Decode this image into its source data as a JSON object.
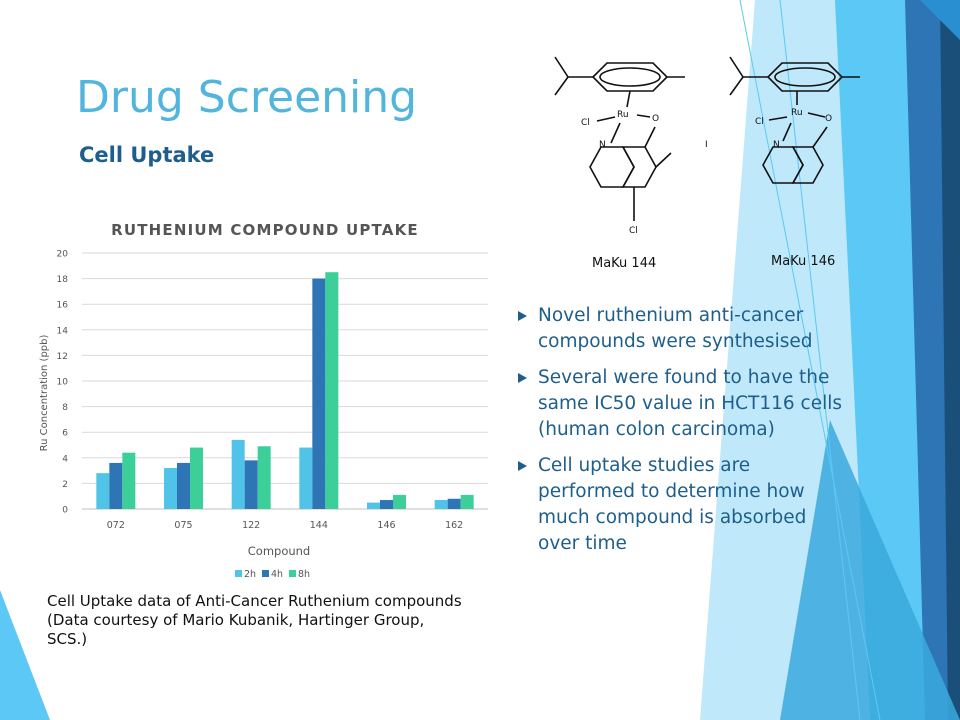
{
  "slide": {
    "title": "Drug Screening",
    "subtitle": "Cell Uptake",
    "caption_lines": [
      "Cell Uptake data of Anti-Cancer Ruthenium compounds",
      "(Data courtesy of Mario Kubanik, Hartinger Group,",
      "SCS.)"
    ],
    "bullets": [
      {
        "lines": [
          "Novel ruthenium anti-cancer",
          "compounds were synthesised"
        ]
      },
      {
        "lines": [
          "Several were found to have the",
          "same IC50 value in HCT116 cells",
          "(human colon carcinoma)"
        ]
      },
      {
        "lines": [
          "Cell uptake studies are",
          "performed to determine how",
          "much compound is absorbed",
          "over time"
        ]
      }
    ],
    "structures": [
      {
        "name": "MaKu 144",
        "atoms": {
          "metal": "Ru",
          "chloride": "Cl",
          "nitrogen": "N",
          "oxygen": "O",
          "iodine": "I",
          "ring_chloride": "Cl"
        }
      },
      {
        "name": "MaKu 146",
        "atoms": {
          "metal": "Ru",
          "chloride": "Cl",
          "nitrogen": "N",
          "oxygen": "O"
        }
      }
    ],
    "colors": {
      "title": "#52b5dc",
      "text": "#1e5e8c",
      "accent_dark": "#2e75b6",
      "accent_light": "#5bc8f5"
    }
  },
  "chart_data": {
    "type": "bar",
    "title": "RUTHENIUM COMPOUND UPTAKE",
    "xlabel": "Compound",
    "ylabel": "Ru Concentration (ppb)",
    "categories": [
      "072",
      "075",
      "122",
      "144",
      "146",
      "162"
    ],
    "ylim": [
      0,
      20
    ],
    "yticks": [
      0,
      2,
      4,
      6,
      8,
      10,
      12,
      14,
      16,
      18,
      20
    ],
    "grid": true,
    "legend": "bottom",
    "series": [
      {
        "name": "2h",
        "color": "#4fc3e8",
        "values": [
          2.8,
          3.2,
          5.4,
          4.8,
          0.5,
          0.7
        ]
      },
      {
        "name": "4h",
        "color": "#2e75b6",
        "values": [
          3.6,
          3.6,
          3.8,
          18.0,
          0.7,
          0.8
        ]
      },
      {
        "name": "8h",
        "color": "#3ccf9a",
        "values": [
          4.4,
          4.8,
          4.9,
          18.5,
          1.1,
          1.1
        ]
      }
    ]
  }
}
